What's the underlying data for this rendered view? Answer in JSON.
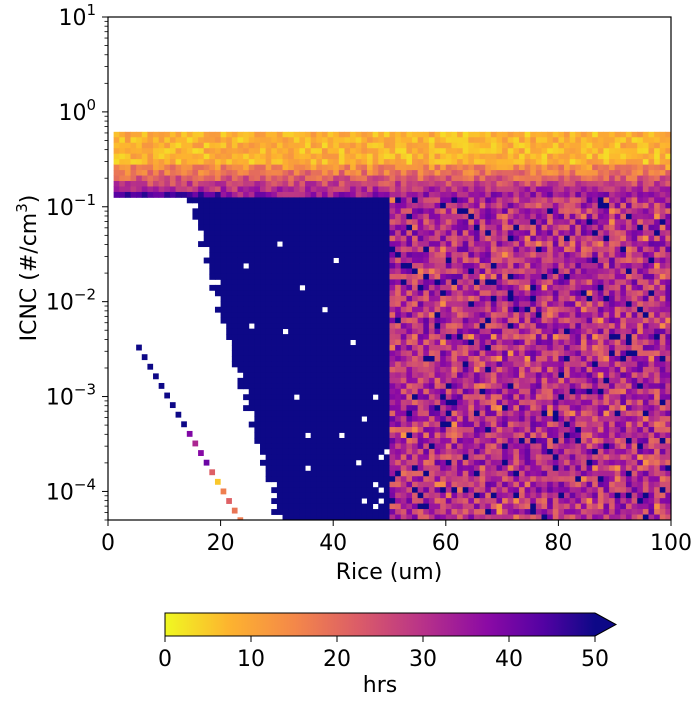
{
  "chart_data": {
    "type": "heatmap",
    "title": "",
    "xlabel": "Rice (um)",
    "ylabel_main": "ICNC (#/cm",
    "ylabel_sup": "3",
    "ylabel_tail": ")",
    "xlim": [
      0,
      100
    ],
    "ylim": [
      5e-05,
      10
    ],
    "yscale": "log",
    "x_ticks": [
      0,
      20,
      40,
      60,
      80,
      100
    ],
    "x_tick_labels": [
      "0",
      "20",
      "40",
      "60",
      "80",
      "100"
    ],
    "y_ticks": [
      {
        "value": 10,
        "base": "10",
        "exp": "1"
      },
      {
        "value": 1,
        "base": "10",
        "exp": "0"
      },
      {
        "value": 0.1,
        "base": "10",
        "exp": "−1"
      },
      {
        "value": 0.01,
        "base": "10",
        "exp": "−2"
      },
      {
        "value": 0.001,
        "base": "10",
        "exp": "−3"
      },
      {
        "value": 0.0001,
        "base": "10",
        "exp": "−4"
      }
    ],
    "grid": false,
    "colormap": "plasma_r",
    "colorbar": {
      "label": "hrs",
      "min": 0,
      "max": 50,
      "ticks": [
        0,
        10,
        20,
        30,
        40,
        50
      ],
      "tick_labels": [
        "0",
        "10",
        "20",
        "30",
        "40",
        "50"
      ],
      "extend": "max",
      "orientation": "horizontal"
    },
    "colors": {
      "low": "#f0f921",
      "mid": "#e16462",
      "high": "#0d0887"
    },
    "regions": [
      {
        "name": "top band upper",
        "x_range": [
          1,
          100
        ],
        "y_range": [
          0.28,
          0.6
        ],
        "hours_typical": 6
      },
      {
        "name": "top band lower",
        "x_range": [
          1,
          100
        ],
        "y_range": [
          0.13,
          0.28
        ],
        "hours_typical": 25
      },
      {
        "name": "saturated core",
        "x_range_at_ymax": [
          14,
          50
        ],
        "x_range_at_ymin": [
          30,
          49
        ],
        "y_range": [
          5e-05,
          0.13
        ],
        "hours_typical": 50
      },
      {
        "name": "scattered field",
        "x_range": [
          48,
          100
        ],
        "y_range": [
          5e-05,
          0.13
        ],
        "hours_typical": 30
      },
      {
        "name": "diagonal streak",
        "x_from": 5,
        "x_to": 23,
        "y_from": 0.0033,
        "y_to": 5e-05,
        "hours_typical": 40
      }
    ]
  }
}
